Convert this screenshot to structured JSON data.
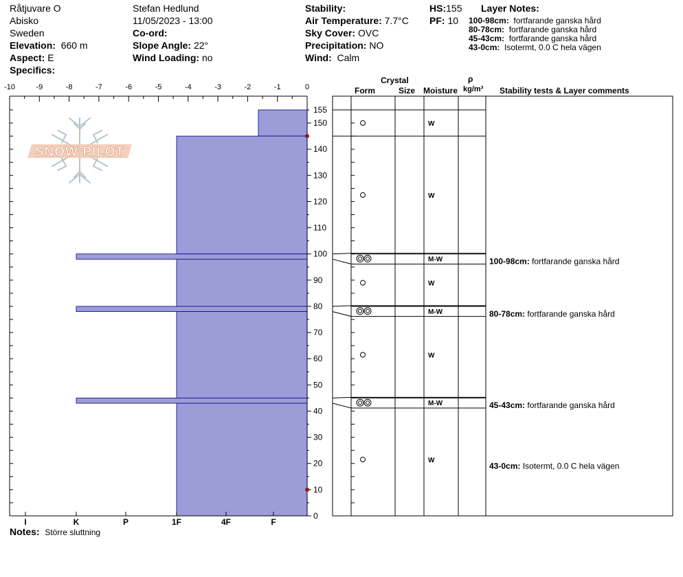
{
  "header": {
    "location": "Råtjuvare O",
    "region": "Abisko",
    "country": "Sweden",
    "elevation_label": "Elevation:",
    "elevation_value": "660 m",
    "aspect_label": "Aspect:",
    "aspect_value": "E",
    "specifics_label": "Specifics:",
    "observer": "Stefan Hedlund",
    "datetime": "11/05/2023 - 13:00",
    "coord_label": "Co-ord:",
    "slope_label": "Slope Angle:",
    "slope_value": "22°",
    "wind_loading_label": "Wind Loading:",
    "wind_loading_value": "no",
    "stability_label": "Stability:",
    "air_temp_label": "Air Temperature:",
    "air_temp_value": "7.7°C",
    "sky_label": "Sky Cover:",
    "sky_value": "OVC",
    "precip_label": "Precipitation:",
    "precip_value": "NO",
    "wind_label": "Wind:",
    "wind_value": "Calm",
    "hs_label": "HS:",
    "hs_value": "155",
    "pf_label": "PF:",
    "pf_value": "10",
    "layer_notes_label": "Layer Notes:",
    "layer_notes": [
      {
        "range": "100-98cm:",
        "text": "fortfarande ganska hård"
      },
      {
        "range": "80-78cm:",
        "text": "fortfarande ganska hård"
      },
      {
        "range": "45-43cm:",
        "text": "fortfarande ganska hård"
      },
      {
        "range": "43-0cm:",
        "text": "Isotermt, 0.0 C hela vägen"
      }
    ]
  },
  "logo_text": "SNOW PILOT",
  "table_headers": {
    "crystal": "Crystal",
    "form": "Form",
    "size": "Size",
    "moisture": "Moisture",
    "rho": "ρ",
    "density_unit": "kg/m³",
    "comments": "Stability tests & Layer comments"
  },
  "notes_label": "Notes:",
  "notes_text": "Större sluttning",
  "colors": {
    "layer_fill": "#9c9cd8",
    "layer_stroke": "#00008b",
    "temp_marker": "#8b1a1a"
  },
  "chart_data": {
    "type": "bar",
    "title": "",
    "snow_height_cm": 155,
    "temperature_axis": {
      "ticks": [
        "-10",
        "-9",
        "-8",
        "-7",
        "-6",
        "-5",
        "-4",
        "-3",
        "-2",
        "-1",
        "0"
      ],
      "range": [
        -10,
        0
      ]
    },
    "height_axis": {
      "ticks": [
        "0",
        "10",
        "20",
        "30",
        "40",
        "50",
        "60",
        "70",
        "80",
        "90",
        "100",
        "110",
        "120",
        "130",
        "140",
        "150",
        "155"
      ],
      "range": [
        0,
        155
      ]
    },
    "hardness_axis": {
      "ticks": [
        "I",
        "K",
        "P",
        "1F",
        "4F",
        "F"
      ]
    },
    "layers": [
      {
        "top": 155,
        "bottom": 145,
        "hardness": "F",
        "hardness_value": 0.5,
        "form": "○",
        "moisture": "W",
        "comment": ""
      },
      {
        "top": 145,
        "bottom": 100,
        "hardness": "1F",
        "hardness_value": 3,
        "form": "○",
        "moisture": "W",
        "comment": ""
      },
      {
        "top": 100,
        "bottom": 98,
        "hardness": "K-",
        "hardness_value": 4.7,
        "form": "◎◎",
        "moisture": "M-W",
        "comment": "fortfarande ganska hård",
        "comment_range": "100-98cm:"
      },
      {
        "top": 98,
        "bottom": 80,
        "hardness": "1F",
        "hardness_value": 3,
        "form": "○",
        "moisture": "W",
        "comment": ""
      },
      {
        "top": 80,
        "bottom": 78,
        "hardness": "K-",
        "hardness_value": 4.7,
        "form": "◎◎",
        "moisture": "M-W",
        "comment": "fortfarande ganska hård",
        "comment_range": "80-78cm:"
      },
      {
        "top": 78,
        "bottom": 45,
        "hardness": "1F",
        "hardness_value": 3,
        "form": "○",
        "moisture": "W",
        "comment": ""
      },
      {
        "top": 45,
        "bottom": 43,
        "hardness": "K-",
        "hardness_value": 4.7,
        "form": "◎◎",
        "moisture": "M-W",
        "comment": "fortfarande ganska hård",
        "comment_range": "45-43cm:"
      },
      {
        "top": 43,
        "bottom": 0,
        "hardness": "1F",
        "hardness_value": 3,
        "form": "○",
        "moisture": "W",
        "comment": "Isotermt, 0.0 C hela vägen",
        "comment_range": "43-0cm:"
      }
    ],
    "temperature_points": [
      {
        "height": 145,
        "temp": 0
      },
      {
        "height": 10,
        "temp": 0
      }
    ]
  }
}
